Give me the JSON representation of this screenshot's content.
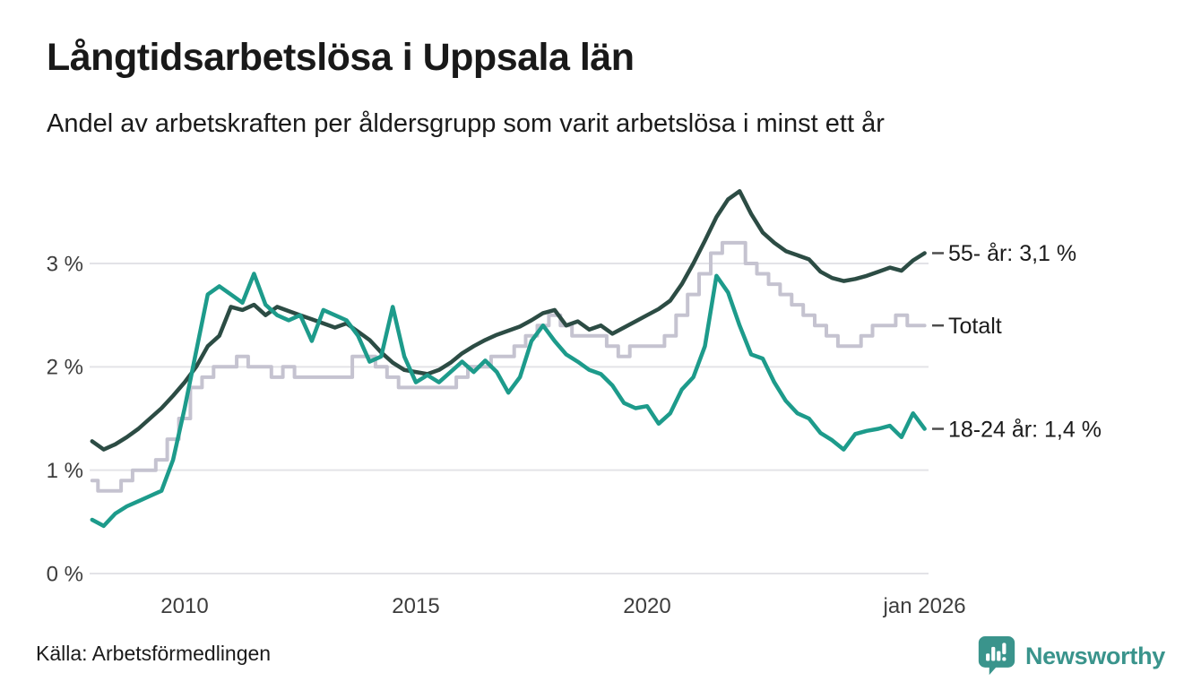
{
  "header": {
    "title": "Långtidsarbetslösa i Uppsala län",
    "subtitle": "Andel av arbetskraften per åldersgrupp som varit arbetslösa i minst ett år"
  },
  "footer": {
    "source": "Källa: Arbetsförmedlingen",
    "brand": "Newsworthy"
  },
  "colors": {
    "background": "#ffffff",
    "title_text": "#191919",
    "axis_text": "#3d3d3d",
    "gridline": "#e3e3e7",
    "annotation_dash": "#4d4d4d",
    "series_55": "#2c4c44",
    "series_total": "#c5c3d0",
    "series_1824": "#1d9b8b",
    "brand_teal": "#3a948c"
  },
  "chart_data": {
    "type": "line",
    "title": "Långtidsarbetslösa i Uppsala län",
    "subtitle": "Andel av arbetskraften per åldersgrupp som varit arbetslösa i minst ett år",
    "xlabel": "",
    "ylabel": "",
    "x_unit": "decimal_year",
    "ylim": [
      0,
      3.9
    ],
    "xlim": [
      2007.9,
      2026.05
    ],
    "grid": "horizontal",
    "legend_position": "right-end-labels",
    "x": [
      2008.0,
      2008.25,
      2008.5,
      2008.75,
      2009.0,
      2009.25,
      2009.5,
      2009.75,
      2010.0,
      2010.25,
      2010.5,
      2010.75,
      2011.0,
      2011.25,
      2011.5,
      2011.75,
      2012.0,
      2012.25,
      2012.5,
      2012.75,
      2013.0,
      2013.25,
      2013.5,
      2013.75,
      2014.0,
      2014.25,
      2014.5,
      2014.75,
      2015.0,
      2015.25,
      2015.5,
      2015.75,
      2016.0,
      2016.25,
      2016.5,
      2016.75,
      2017.0,
      2017.25,
      2017.5,
      2017.75,
      2018.0,
      2018.25,
      2018.5,
      2018.75,
      2019.0,
      2019.25,
      2019.5,
      2019.75,
      2020.0,
      2020.25,
      2020.5,
      2020.75,
      2021.0,
      2021.25,
      2021.5,
      2021.75,
      2022.0,
      2022.25,
      2022.5,
      2022.75,
      2023.0,
      2023.25,
      2023.5,
      2023.75,
      2024.0,
      2024.25,
      2024.5,
      2024.75,
      2025.0,
      2025.25,
      2025.5,
      2025.75,
      2026.0
    ],
    "series": [
      {
        "name": "55- år",
        "end_label": "55- år: 3,1 %",
        "end_value_text": "3,1 %",
        "color": "#2c4c44",
        "style": "line",
        "values": [
          1.28,
          1.2,
          1.25,
          1.32,
          1.4,
          1.5,
          1.6,
          1.72,
          1.85,
          2.0,
          2.2,
          2.3,
          2.58,
          2.55,
          2.6,
          2.5,
          2.58,
          2.54,
          2.5,
          2.46,
          2.42,
          2.38,
          2.42,
          2.34,
          2.26,
          2.14,
          2.04,
          1.97,
          1.95,
          1.93,
          1.97,
          2.04,
          2.13,
          2.2,
          2.26,
          2.31,
          2.35,
          2.39,
          2.45,
          2.52,
          2.55,
          2.4,
          2.44,
          2.36,
          2.4,
          2.32,
          2.38,
          2.44,
          2.5,
          2.56,
          2.64,
          2.8,
          3.0,
          3.22,
          3.45,
          3.62,
          3.7,
          3.48,
          3.3,
          3.2,
          3.12,
          3.08,
          3.04,
          2.92,
          2.86,
          2.83,
          2.85,
          2.88,
          2.92,
          2.96,
          2.93,
          3.03,
          3.1
        ]
      },
      {
        "name": "Totalt",
        "end_label": "Totalt",
        "end_value_text": "",
        "color": "#c5c3d0",
        "style": "step",
        "values": [
          0.9,
          0.8,
          0.8,
          0.9,
          1.0,
          1.0,
          1.1,
          1.3,
          1.5,
          1.8,
          1.9,
          2.0,
          2.0,
          2.1,
          2.0,
          2.0,
          1.9,
          2.0,
          1.9,
          1.9,
          1.9,
          1.9,
          1.9,
          2.1,
          2.1,
          2.0,
          1.9,
          1.8,
          1.8,
          1.8,
          1.8,
          1.8,
          1.9,
          2.0,
          2.0,
          2.1,
          2.1,
          2.2,
          2.3,
          2.4,
          2.5,
          2.4,
          2.3,
          2.3,
          2.3,
          2.2,
          2.1,
          2.2,
          2.2,
          2.2,
          2.3,
          2.5,
          2.7,
          2.9,
          3.1,
          3.2,
          3.2,
          3.0,
          2.9,
          2.8,
          2.7,
          2.6,
          2.5,
          2.4,
          2.3,
          2.2,
          2.2,
          2.3,
          2.4,
          2.4,
          2.5,
          2.4,
          2.4
        ]
      },
      {
        "name": "18-24 år",
        "end_label": "18-24 år: 1,4 %",
        "end_value_text": "1,4 %",
        "color": "#1d9b8b",
        "style": "line",
        "values": [
          0.52,
          0.46,
          0.58,
          0.65,
          0.7,
          0.75,
          0.8,
          1.1,
          1.6,
          2.15,
          2.7,
          2.78,
          2.7,
          2.62,
          2.9,
          2.6,
          2.5,
          2.45,
          2.5,
          2.25,
          2.55,
          2.5,
          2.45,
          2.3,
          2.05,
          2.1,
          2.58,
          2.1,
          1.85,
          1.92,
          1.85,
          1.95,
          2.05,
          1.95,
          2.06,
          1.95,
          1.75,
          1.9,
          2.25,
          2.4,
          2.25,
          2.12,
          2.05,
          1.97,
          1.93,
          1.82,
          1.65,
          1.6,
          1.62,
          1.45,
          1.55,
          1.78,
          1.9,
          2.2,
          2.88,
          2.72,
          2.4,
          2.12,
          2.08,
          1.85,
          1.67,
          1.55,
          1.5,
          1.36,
          1.29,
          1.2,
          1.35,
          1.38,
          1.4,
          1.43,
          1.32,
          1.55,
          1.4
        ]
      }
    ],
    "y_axis": {
      "ticks": [
        {
          "v": 0,
          "label": "0 %"
        },
        {
          "v": 1,
          "label": "1 %"
        },
        {
          "v": 2,
          "label": "2 %"
        },
        {
          "v": 3,
          "label": "3 %"
        }
      ]
    },
    "x_axis": {
      "ticks": [
        {
          "v": 2010,
          "label": "2010"
        },
        {
          "v": 2015,
          "label": "2015"
        },
        {
          "v": 2020,
          "label": "2020"
        },
        {
          "v": 2026,
          "label": "jan 2026"
        }
      ]
    }
  }
}
